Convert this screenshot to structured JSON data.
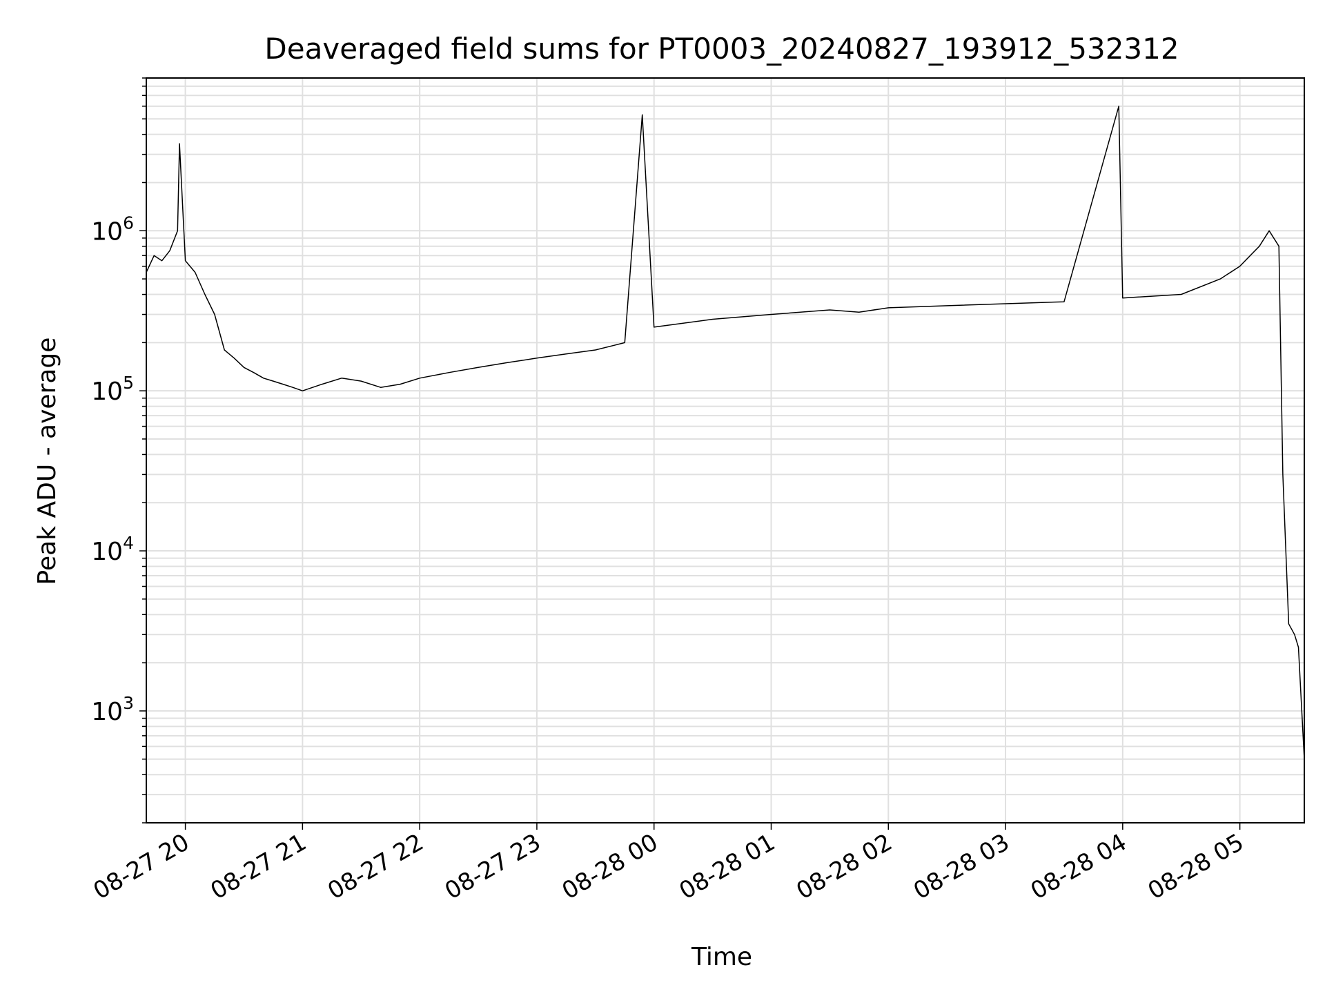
{
  "chart_data": {
    "type": "line",
    "title": "Deaveraged field sums for PT0003_20240827_193912_532312",
    "xlabel": "Time",
    "ylabel": "Peak ADU - average",
    "yscale": "log",
    "xlim": [
      "2024-08-27 19:40",
      "2024-08-28 05:33"
    ],
    "ylim": [
      200,
      9000000
    ],
    "x_ticks": [
      {
        "t": "2024-08-27 20:00",
        "label": "08-27 20"
      },
      {
        "t": "2024-08-27 21:00",
        "label": "08-27 21"
      },
      {
        "t": "2024-08-27 22:00",
        "label": "08-27 22"
      },
      {
        "t": "2024-08-27 23:00",
        "label": "08-27 23"
      },
      {
        "t": "2024-08-28 00:00",
        "label": "08-28 00"
      },
      {
        "t": "2024-08-28 01:00",
        "label": "08-28 01"
      },
      {
        "t": "2024-08-28 02:00",
        "label": "08-28 02"
      },
      {
        "t": "2024-08-28 03:00",
        "label": "08-28 03"
      },
      {
        "t": "2024-08-28 04:00",
        "label": "08-28 04"
      },
      {
        "t": "2024-08-28 05:00",
        "label": "08-28 05"
      }
    ],
    "y_ticks": [
      {
        "v": 1000,
        "base": "10",
        "exp": "3"
      },
      {
        "v": 10000,
        "base": "10",
        "exp": "4"
      },
      {
        "v": 100000,
        "base": "10",
        "exp": "5"
      },
      {
        "v": 1000000,
        "base": "10",
        "exp": "6"
      }
    ],
    "grid": true,
    "line_color": "#000000",
    "grid_color": "#e0e0e0",
    "series": [
      {
        "x": [
          "2024-08-27 19:40",
          "2024-08-27 19:44",
          "2024-08-27 19:48",
          "2024-08-27 19:52",
          "2024-08-27 19:56",
          "2024-08-27 19:57",
          "2024-08-27 20:00",
          "2024-08-27 20:05",
          "2024-08-27 20:10",
          "2024-08-27 20:15",
          "2024-08-27 20:20",
          "2024-08-27 20:25",
          "2024-08-27 20:30",
          "2024-08-27 20:35",
          "2024-08-27 20:40",
          "2024-08-27 20:45",
          "2024-08-27 20:50",
          "2024-08-27 20:55",
          "2024-08-27 21:00",
          "2024-08-27 21:10",
          "2024-08-27 21:20",
          "2024-08-27 21:30",
          "2024-08-27 21:40",
          "2024-08-27 21:50",
          "2024-08-27 22:00",
          "2024-08-27 22:15",
          "2024-08-27 22:30",
          "2024-08-27 22:45",
          "2024-08-27 23:00",
          "2024-08-27 23:15",
          "2024-08-27 23:30",
          "2024-08-27 23:45",
          "2024-08-27 23:54",
          "2024-08-28 00:00",
          "2024-08-28 00:30",
          "2024-08-28 01:00",
          "2024-08-28 01:30",
          "2024-08-28 01:45",
          "2024-08-28 02:00",
          "2024-08-28 02:30",
          "2024-08-28 03:00",
          "2024-08-28 03:30",
          "2024-08-28 03:58",
          "2024-08-28 04:00",
          "2024-08-28 04:30",
          "2024-08-28 04:50",
          "2024-08-28 05:00",
          "2024-08-28 05:10",
          "2024-08-28 05:15",
          "2024-08-28 05:20",
          "2024-08-28 05:22",
          "2024-08-28 05:25",
          "2024-08-28 05:28",
          "2024-08-28 05:30",
          "2024-08-28 05:33"
        ],
        "y": [
          550000,
          700000,
          650000,
          750000,
          1000000,
          3500000,
          650000,
          550000,
          400000,
          300000,
          180000,
          160000,
          140000,
          130000,
          120000,
          115000,
          110000,
          105000,
          100000,
          110000,
          120000,
          115000,
          105000,
          110000,
          120000,
          130000,
          140000,
          150000,
          160000,
          170000,
          180000,
          200000,
          5300000,
          250000,
          280000,
          300000,
          320000,
          310000,
          330000,
          340000,
          350000,
          360000,
          6000000,
          380000,
          400000,
          500000,
          600000,
          800000,
          1000000,
          800000,
          30000,
          3500,
          3000,
          2500,
          500
        ]
      }
    ]
  }
}
